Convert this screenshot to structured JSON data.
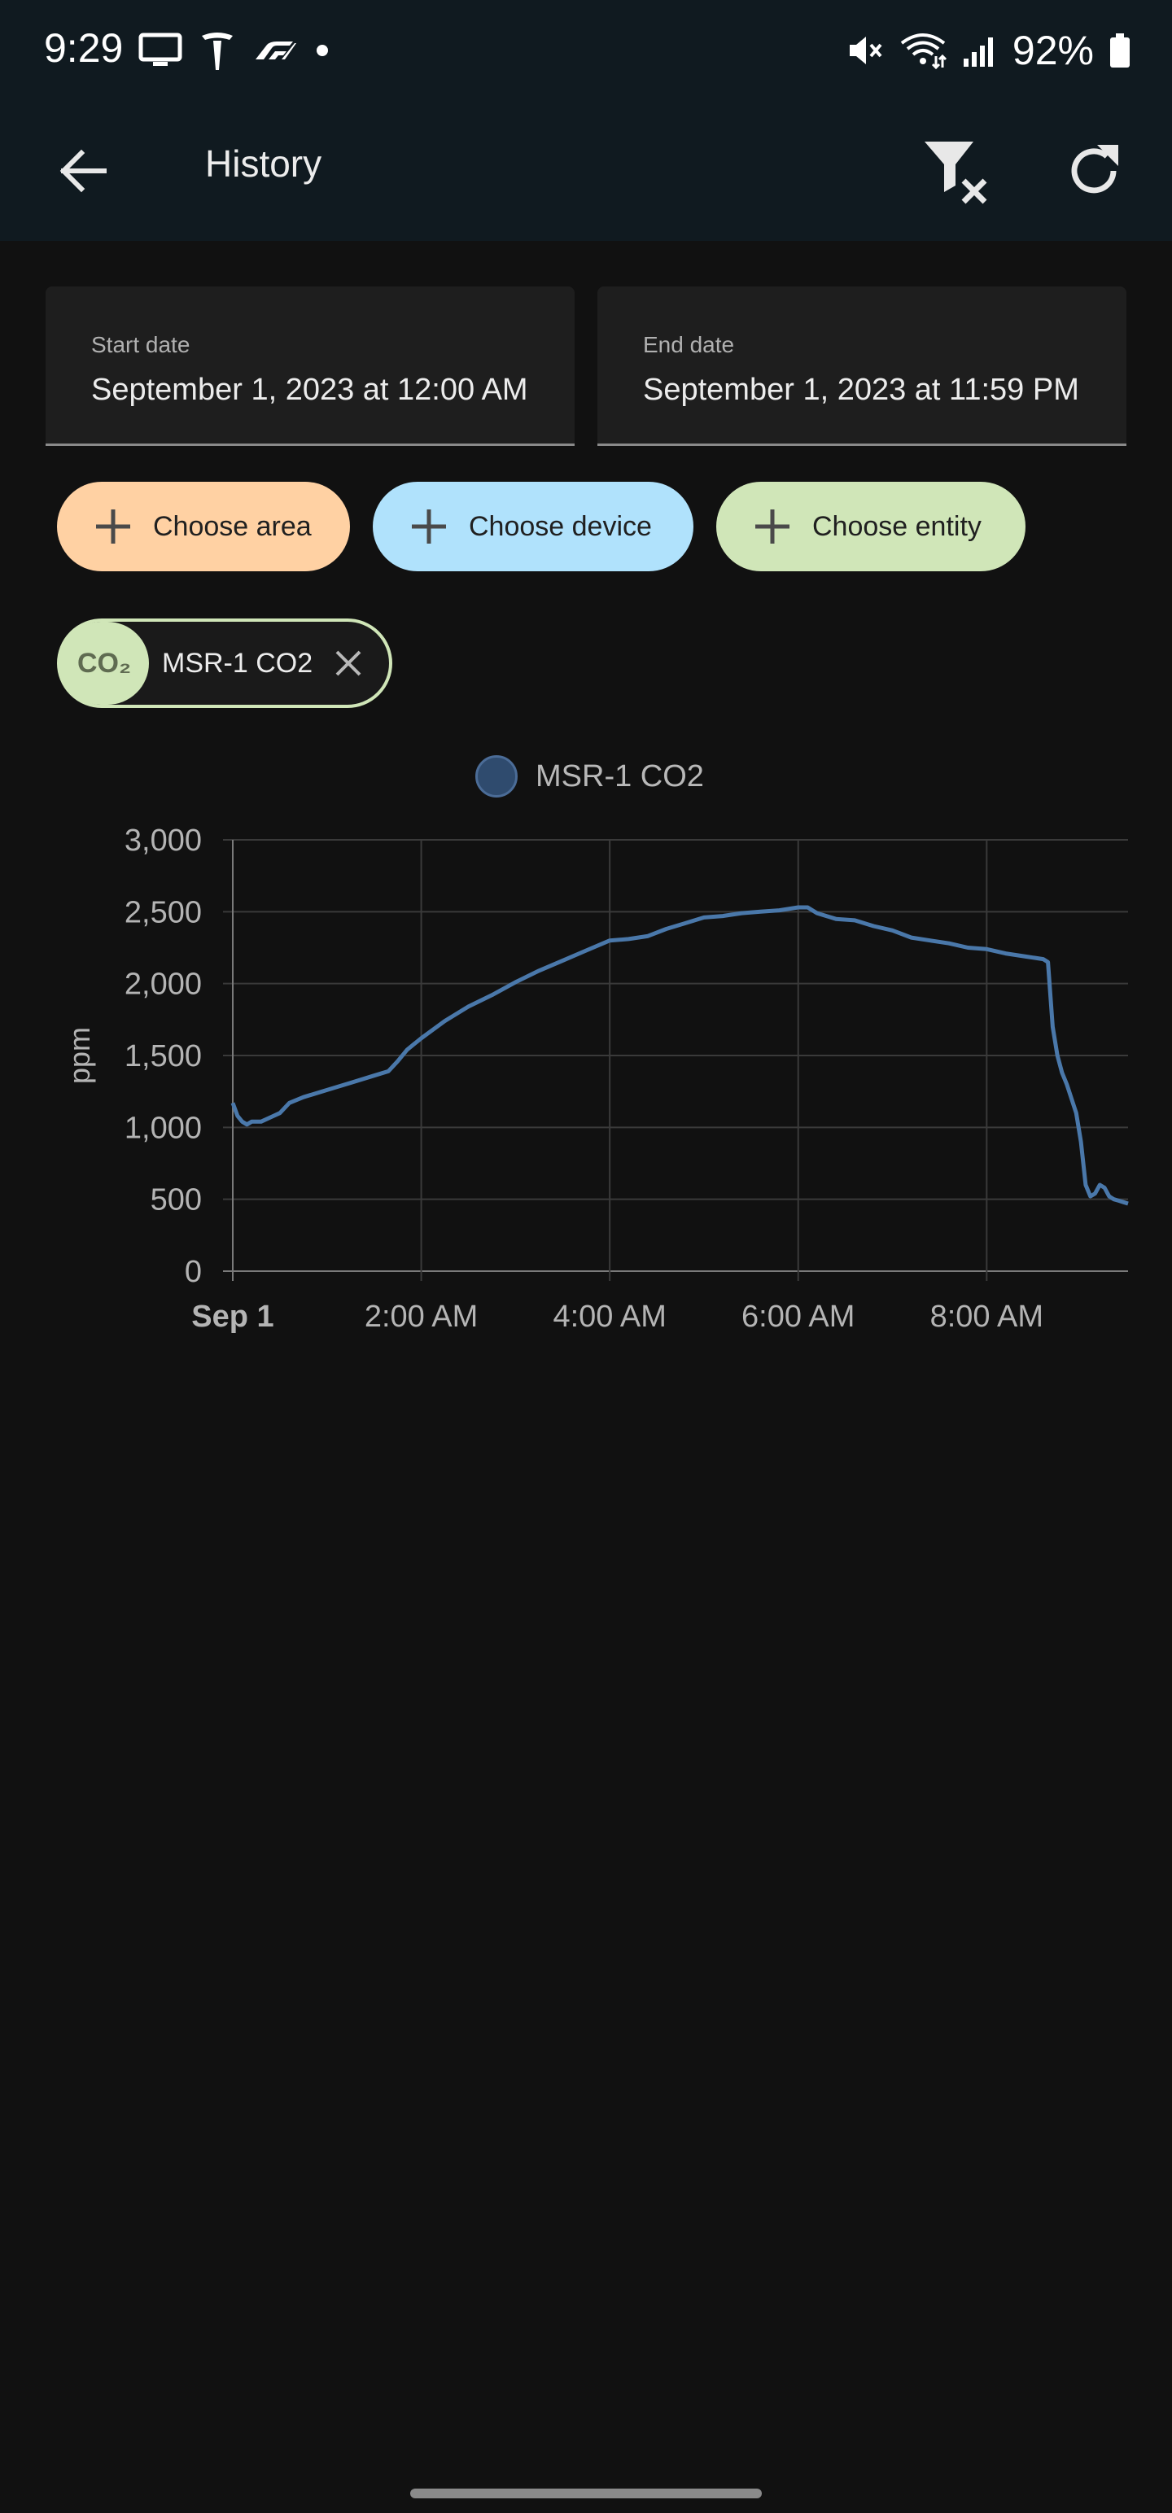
{
  "status_bar": {
    "time": "9:29",
    "battery": "92%",
    "icons_left": [
      "tv-icon",
      "tesla-icon",
      "f1-icon",
      "dot-icon"
    ],
    "icons_right": [
      "mute-icon",
      "wifi-icon",
      "signal-icon",
      "battery-icon"
    ]
  },
  "toolbar": {
    "title": "History",
    "back_icon": "arrow-left-icon",
    "filter_icon": "filter-remove-icon",
    "refresh_icon": "refresh-icon"
  },
  "date_range": {
    "start_label": "Start date",
    "start_value": "September 1, 2023 at 12:00 AM",
    "end_label": "End date",
    "end_value": "September 1, 2023 at 11:59 PM"
  },
  "pickers": {
    "area": "Choose area",
    "device": "Choose device",
    "entity": "Choose entity"
  },
  "selected_entity": {
    "icon_text": "CO₂",
    "label": "MSR-1 CO2"
  },
  "colors": {
    "area_chip": "#ffd1a3",
    "device_chip": "#b0e2fc",
    "entity_chip": "#d0e6b8",
    "series_line": "#4a78aa",
    "background": "#111111",
    "toolbar": "#101a20"
  },
  "chart_data": {
    "type": "line",
    "title": "",
    "legend": [
      "MSR-1 CO2"
    ],
    "legend_position": "top-center",
    "ylabel": "ppm",
    "xlabel": "",
    "ylim": [
      0,
      3000
    ],
    "y_ticks": [
      0,
      500,
      1000,
      1500,
      2000,
      2500,
      3000
    ],
    "y_tick_labels": [
      "0",
      "500",
      "1,000",
      "1,500",
      "2,000",
      "2,500",
      "3,000"
    ],
    "x_range_hours": [
      0,
      9.5
    ],
    "x_ticks": [
      0,
      2,
      4,
      6,
      8
    ],
    "x_tick_labels": [
      "Sep 1",
      "2:00 AM",
      "4:00 AM",
      "6:00 AM",
      "8:00 AM"
    ],
    "grid": true,
    "series": [
      {
        "name": "MSR-1 CO2",
        "x_hours": [
          0.0,
          0.05,
          0.1,
          0.15,
          0.2,
          0.3,
          0.4,
          0.5,
          0.6,
          0.75,
          1.0,
          1.25,
          1.5,
          1.65,
          1.75,
          1.85,
          2.0,
          2.25,
          2.5,
          2.75,
          3.0,
          3.25,
          3.5,
          3.75,
          4.0,
          4.2,
          4.4,
          4.6,
          4.8,
          5.0,
          5.2,
          5.4,
          5.6,
          5.8,
          6.0,
          6.1,
          6.2,
          6.4,
          6.6,
          6.8,
          7.0,
          7.2,
          7.4,
          7.6,
          7.8,
          8.0,
          8.2,
          8.4,
          8.6,
          8.65,
          8.7,
          8.75,
          8.8,
          8.85,
          8.9,
          8.95,
          9.0,
          9.05,
          9.1,
          9.15,
          9.2,
          9.25,
          9.3,
          9.35,
          9.4,
          9.45,
          9.5
        ],
        "values": [
          1170,
          1080,
          1040,
          1020,
          1040,
          1040,
          1070,
          1100,
          1170,
          1210,
          1260,
          1310,
          1360,
          1390,
          1460,
          1540,
          1620,
          1740,
          1840,
          1920,
          2010,
          2090,
          2160,
          2230,
          2300,
          2310,
          2330,
          2380,
          2420,
          2460,
          2470,
          2490,
          2500,
          2510,
          2530,
          2530,
          2490,
          2450,
          2440,
          2400,
          2370,
          2320,
          2300,
          2280,
          2250,
          2240,
          2210,
          2190,
          2170,
          2150,
          1700,
          1500,
          1380,
          1300,
          1200,
          1100,
          900,
          600,
          520,
          540,
          600,
          580,
          520,
          500,
          490,
          480,
          470
        ]
      }
    ]
  }
}
